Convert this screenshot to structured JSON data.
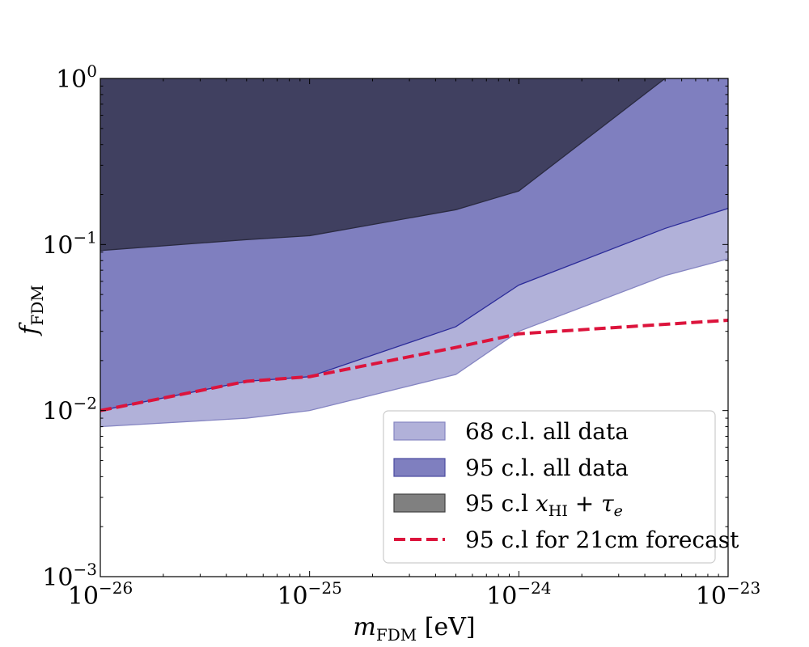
{
  "chart_data": {
    "type": "area",
    "xscale": "log",
    "yscale": "log",
    "xlim": [
      1e-26,
      1e-23
    ],
    "ylim": [
      0.001,
      1
    ],
    "grid": false,
    "legend_position": "lower-right",
    "xlabel": {
      "symbol": "m",
      "subscript": "FDM",
      "unit": "[eV]"
    },
    "ylabel": {
      "symbol": "f",
      "subscript": "FDM"
    },
    "x_ticks": [
      {
        "value": 1e-26,
        "base": "10",
        "exponent": "−26"
      },
      {
        "value": 1e-25,
        "base": "10",
        "exponent": "−25"
      },
      {
        "value": 1e-24,
        "base": "10",
        "exponent": "−24"
      },
      {
        "value": 1e-23,
        "base": "10",
        "exponent": "−23"
      }
    ],
    "y_ticks": [
      {
        "value": 0.001,
        "base": "10",
        "exponent": "−3"
      },
      {
        "value": 0.01,
        "base": "10",
        "exponent": "−2"
      },
      {
        "value": 0.1,
        "base": "10",
        "exponent": "−1"
      },
      {
        "value": 1,
        "base": "10",
        "exponent": "0"
      }
    ],
    "series": [
      {
        "name": "68 c.l. all data",
        "kind": "band",
        "color": "#b1b1d9",
        "edge": "#8585c2",
        "x": [
          1e-26,
          5e-26,
          1e-25,
          5e-25,
          1e-24,
          5e-24,
          1e-23
        ],
        "lower": [
          0.008,
          0.009,
          0.01,
          0.0165,
          0.03,
          0.065,
          0.082
        ],
        "upper": [
          0.01,
          0.015,
          0.016,
          0.032,
          0.057,
          0.125,
          0.165
        ]
      },
      {
        "name": "95 c.l. all data",
        "kind": "band",
        "color": "#7f7fbf",
        "edge": "#2b2b99",
        "x": [
          1e-26,
          5e-26,
          1e-25,
          5e-25,
          1e-24,
          5e-24,
          1e-23
        ],
        "lower": [
          0.01,
          0.015,
          0.016,
          0.032,
          0.057,
          0.125,
          0.165
        ],
        "upper": [
          1,
          1,
          1,
          1,
          1,
          1,
          1
        ]
      },
      {
        "name": "95 c.l x_HI + τ_e",
        "label": {
          "prefix": "95 c.l ",
          "v1": "x",
          "v1_sub": "HI",
          "mid": " + ",
          "v2": "τ",
          "v2_sub": "e"
        },
        "kind": "band",
        "color": "#404060",
        "edge": "#2a2a40",
        "legend_color": "#808080",
        "x": [
          1e-26,
          5e-26,
          1e-25,
          5e-25,
          1e-24,
          5e-24,
          1e-23
        ],
        "lower": [
          0.092,
          0.107,
          0.113,
          0.162,
          0.21,
          1,
          1
        ],
        "upper": [
          1,
          1,
          1,
          1,
          1,
          1,
          1
        ]
      },
      {
        "name": "95 c.l for 21cm forecast",
        "kind": "line",
        "style": "dashed",
        "color": "#dc143c",
        "x": [
          1e-26,
          5e-26,
          1e-25,
          5e-25,
          1e-24,
          1e-23
        ],
        "y": [
          0.01,
          0.015,
          0.016,
          0.024,
          0.029,
          0.035
        ]
      }
    ],
    "legend": [
      {
        "text": "68 c.l. all data",
        "swatch": "patch",
        "color": "#b1b1d9",
        "edge": "#8585c2"
      },
      {
        "text": "95 c.l. all data",
        "swatch": "patch",
        "color": "#7f7fbf",
        "edge": "#4a4aa0"
      },
      {
        "text": "95 c.l x_HI + τ_e",
        "swatch": "patch",
        "color": "#808080",
        "edge": "#404040"
      },
      {
        "text": "95 c.l for 21cm forecast",
        "swatch": "dash",
        "color": "#dc143c"
      }
    ]
  }
}
